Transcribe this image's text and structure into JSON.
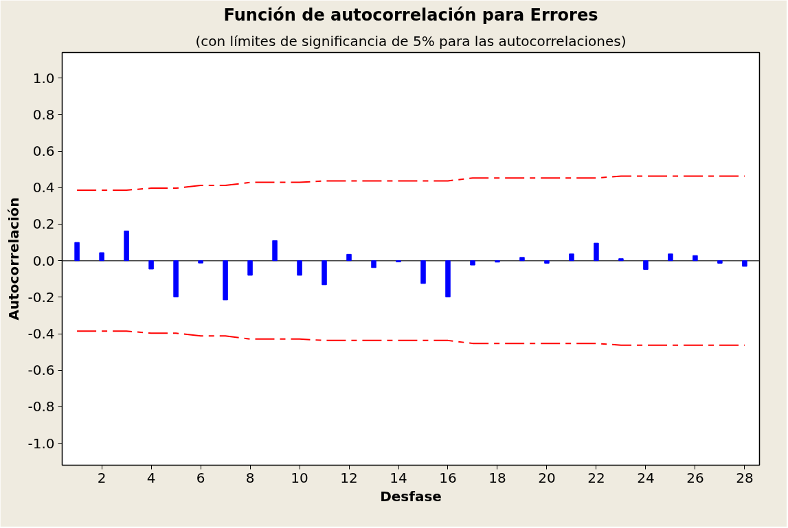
{
  "chart_data": {
    "type": "bar",
    "title": "Función de autocorrelación para Errores",
    "subtitle": "(con límites de significancia de 5% para las autocorrelaciones)",
    "xlabel": "Desfase",
    "ylabel": "Autocorrelación",
    "x": [
      1,
      2,
      3,
      4,
      5,
      6,
      7,
      8,
      9,
      10,
      11,
      12,
      13,
      14,
      15,
      16,
      17,
      18,
      19,
      20,
      21,
      22,
      23,
      24,
      25,
      26,
      27,
      28
    ],
    "series": [
      {
        "color": "#0000ff",
        "values": [
          0.1,
          0.044,
          0.163,
          -0.046,
          -0.199,
          -0.013,
          -0.215,
          -0.08,
          0.11,
          -0.08,
          -0.132,
          0.035,
          -0.038,
          -0.007,
          -0.125,
          -0.199,
          -0.024,
          -0.008,
          0.018,
          -0.014,
          0.037,
          0.096,
          0.011,
          -0.048,
          0.037,
          0.028,
          -0.014,
          -0.031
        ]
      },
      {
        "type": "line",
        "color": "#ff0000",
        "line_style": "dashed",
        "values": [
          0.386,
          0.386,
          0.386,
          0.397,
          0.397,
          0.412,
          0.412,
          0.429,
          0.429,
          0.429,
          0.437,
          0.437,
          0.437,
          0.437,
          0.437,
          0.437,
          0.453,
          0.453,
          0.453,
          0.453,
          0.453,
          0.453,
          0.463,
          0.463,
          0.463,
          0.463,
          0.463,
          0.463
        ]
      },
      {
        "type": "line",
        "color": "#ff0000",
        "line_style": "dashed",
        "values": [
          -0.386,
          -0.386,
          -0.386,
          -0.397,
          -0.397,
          -0.412,
          -0.412,
          -0.429,
          -0.429,
          -0.429,
          -0.437,
          -0.437,
          -0.437,
          -0.437,
          -0.437,
          -0.437,
          -0.453,
          -0.453,
          -0.453,
          -0.453,
          -0.453,
          -0.453,
          -0.463,
          -0.463,
          -0.463,
          -0.463,
          -0.463,
          -0.463
        ]
      }
    ],
    "ref_lines": [
      {
        "axis": "y",
        "value": 0,
        "color": "#404040"
      }
    ],
    "xlim": [
      0.4,
      28.6
    ],
    "ylim": [
      -1.12,
      1.14
    ],
    "xticks": [
      2,
      4,
      6,
      8,
      10,
      12,
      14,
      16,
      18,
      20,
      22,
      24,
      26,
      28
    ],
    "yticks": [
      {
        "value": -1.0,
        "label": "-1.0"
      },
      {
        "value": -0.8,
        "label": "-0.8"
      },
      {
        "value": -0.6,
        "label": "-0.6"
      },
      {
        "value": -0.4,
        "label": "-0.4"
      },
      {
        "value": -0.2,
        "label": "-0.2"
      },
      {
        "value": 0,
        "label": "0.0"
      },
      {
        "value": 0.2,
        "label": "0.2"
      },
      {
        "value": 0.4,
        "label": "0.4"
      },
      {
        "value": 0.6,
        "label": "0.6"
      },
      {
        "value": 0.8,
        "label": "0.8"
      },
      {
        "value": 1.0,
        "label": "1.0"
      }
    ],
    "grid": false
  }
}
